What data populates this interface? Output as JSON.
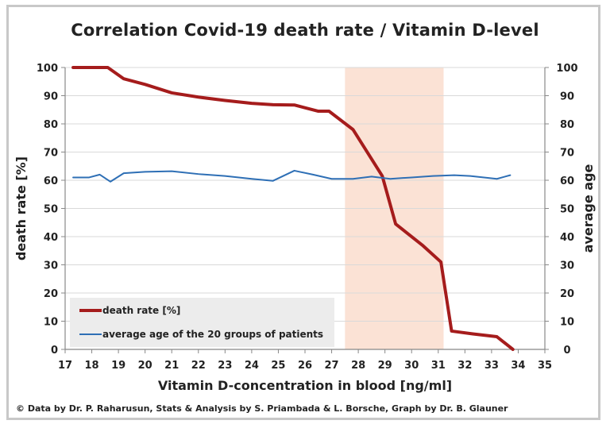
{
  "footer": "© Data by Dr. P. Raharusun, Stats & Analysis by S. Priambada & L. Borsche, Graph by Dr. B. Glauner",
  "chart_data": {
    "type": "line",
    "title": "Correlation Covid-19 death rate / Vitamin D-level",
    "xlabel": "Vitamin D-concentration in blood [ng/ml]",
    "ylabel": "death rate [%]",
    "y2label": "average age",
    "xlim": [
      17,
      35
    ],
    "ylim": [
      0,
      100
    ],
    "y2lim": [
      0,
      100
    ],
    "x_ticks": [
      17,
      18,
      19,
      20,
      21,
      22,
      23,
      24,
      25,
      26,
      27,
      28,
      29,
      30,
      31,
      32,
      33,
      34,
      35
    ],
    "y_ticks": [
      0,
      10,
      20,
      30,
      40,
      50,
      60,
      70,
      80,
      90,
      100
    ],
    "shaded_region": {
      "x_start": 27.5,
      "x_end": 31.2,
      "color": "#fbe2d5"
    },
    "legend_position": "bottom-left",
    "grid": "horizontal",
    "series": [
      {
        "name": "death rate [%]",
        "color": "#a51c1c",
        "axis": "left",
        "x": [
          17.3,
          18.0,
          18.6,
          19.2,
          20.0,
          21.0,
          22.0,
          23.0,
          24.0,
          24.8,
          25.6,
          26.5,
          26.9,
          27.8,
          28.9,
          29.4,
          30.4,
          31.1,
          31.5,
          32.3,
          33.2,
          33.8
        ],
        "y": [
          100,
          100,
          100,
          96,
          94,
          91,
          89.5,
          88.3,
          87.3,
          86.8,
          86.7,
          84.5,
          84.5,
          78,
          61.5,
          44.5,
          37,
          31,
          6.5,
          5.5,
          4.5,
          0
        ]
      },
      {
        "name": "average age of the 20 groups of patients",
        "color": "#2e6fb5",
        "axis": "right",
        "x": [
          17.3,
          17.9,
          18.3,
          18.7,
          19.2,
          20.0,
          21.0,
          22.0,
          23.0,
          24.0,
          24.8,
          25.6,
          26.3,
          27.0,
          27.8,
          28.5,
          29.2,
          30.0,
          30.8,
          31.6,
          32.2,
          33.2,
          33.7
        ],
        "y": [
          61,
          61,
          62,
          59.5,
          62.5,
          63,
          63.2,
          62.2,
          61.5,
          60.5,
          59.8,
          63.4,
          62,
          60.5,
          60.5,
          61.3,
          60.5,
          61,
          61.5,
          61.8,
          61.5,
          60.5,
          61.8
        ]
      }
    ]
  }
}
